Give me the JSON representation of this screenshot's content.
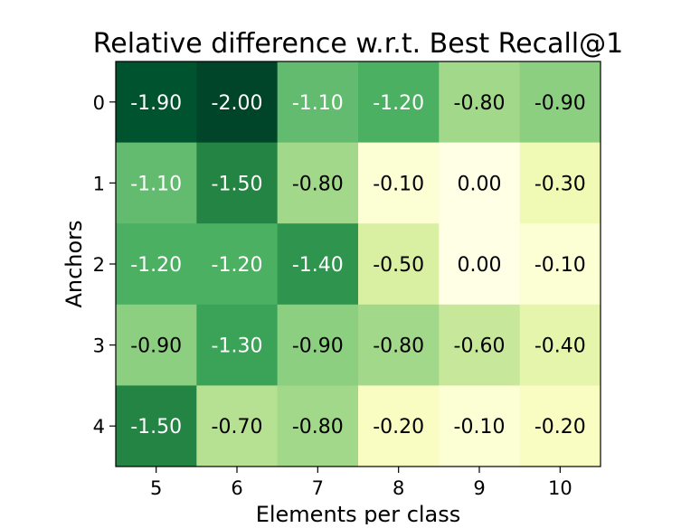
{
  "chart_data": {
    "type": "heatmap",
    "title": "Relative difference w.r.t. Best Recall@1",
    "xlabel": "Elements per class",
    "ylabel": "Anchors",
    "x_categories": [
      "5",
      "6",
      "7",
      "8",
      "9",
      "10"
    ],
    "y_categories": [
      "0",
      "1",
      "2",
      "3",
      "4"
    ],
    "values": [
      [
        -1.9,
        -2.0,
        -1.1,
        -1.2,
        -0.8,
        -0.9
      ],
      [
        -1.1,
        -1.5,
        -0.8,
        -0.1,
        0.0,
        -0.3
      ],
      [
        -1.2,
        -1.2,
        -1.4,
        -0.5,
        0.0,
        -0.1
      ],
      [
        -0.9,
        -1.3,
        -0.9,
        -0.8,
        -0.6,
        -0.4
      ],
      [
        -1.5,
        -0.7,
        -0.8,
        -0.2,
        -0.1,
        -0.2
      ]
    ],
    "value_labels": [
      [
        "-1.90",
        "-2.00",
        "-1.10",
        "-1.20",
        "-0.80",
        "-0.90"
      ],
      [
        "-1.10",
        "-1.50",
        "-0.80",
        "-0.10",
        "0.00",
        "-0.30"
      ],
      [
        "-1.20",
        "-1.20",
        "-1.40",
        "-0.50",
        "0.00",
        "-0.10"
      ],
      [
        "-0.90",
        "-1.30",
        "-0.90",
        "-0.80",
        "-0.60",
        "-0.40"
      ],
      [
        "-1.50",
        "-0.70",
        "-0.80",
        "-0.20",
        "-0.10",
        "-0.20"
      ]
    ],
    "color_range": [
      -2.0,
      0.0
    ],
    "colormap": "YlGn",
    "grid": false,
    "legend": "none"
  }
}
